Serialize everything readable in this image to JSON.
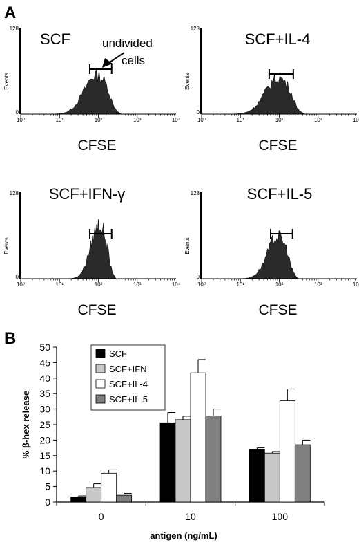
{
  "panel_a_label": "A",
  "panel_b_label": "B",
  "chart_data": [
    {
      "type": "area",
      "panel": "A",
      "title": "SCF",
      "xlabel": "CFSE",
      "ylabel": "Events",
      "x_scale": "log",
      "xlim": [
        1,
        10000
      ],
      "ylim": [
        0,
        128
      ],
      "x_ticks": [
        "10⁰",
        "10¹",
        "10²",
        "10³",
        "10⁴"
      ],
      "y_ticks": [
        "0",
        "128"
      ],
      "peak_x": 90,
      "width": 0.32,
      "peak_y": 60,
      "gate": [
        60,
        220
      ],
      "annotation": {
        "text_line1": "undivided",
        "text_line2": "cells"
      }
    },
    {
      "type": "area",
      "panel": "A",
      "title": "SCF+IL-4",
      "xlabel": "CFSE",
      "ylabel": "Events",
      "x_scale": "log",
      "xlim": [
        1,
        10000
      ],
      "ylim": [
        0,
        128
      ],
      "x_ticks": [
        "10⁰",
        "10¹",
        "10²",
        "10³",
        "10⁴"
      ],
      "y_ticks": [
        "0",
        "128"
      ],
      "peak_x": 95,
      "width": 0.34,
      "peak_y": 55,
      "gate": [
        55,
        230
      ]
    },
    {
      "type": "area",
      "panel": "A",
      "title": "SCF+IFN-γ",
      "xlabel": "CFSE",
      "ylabel": "Events",
      "x_scale": "log",
      "xlim": [
        1,
        10000
      ],
      "ylim": [
        0,
        128
      ],
      "x_ticks": [
        "10⁰",
        "10¹",
        "10²",
        "10³",
        "10⁴"
      ],
      "y_ticks": [
        "0",
        "128"
      ],
      "peak_x": 105,
      "width": 0.22,
      "peak_y": 82,
      "gate": [
        60,
        220
      ]
    },
    {
      "type": "area",
      "panel": "A",
      "title": "SCF+IL-5",
      "xlabel": "CFSE",
      "ylabel": "Events",
      "x_scale": "log",
      "xlim": [
        1,
        10000
      ],
      "ylim": [
        0,
        128
      ],
      "x_ticks": [
        "10⁰",
        "10¹",
        "10²",
        "10³",
        "10⁴"
      ],
      "y_ticks": [
        "0",
        "128"
      ],
      "peak_x": 92,
      "width": 0.27,
      "peak_y": 64,
      "gate": [
        60,
        220
      ]
    },
    {
      "type": "bar",
      "panel": "B",
      "xlabel": "antigen (ng/mL)",
      "ylabel": "% β-hex release",
      "ylim": [
        0,
        50
      ],
      "y_ticks": [
        0,
        5,
        10,
        15,
        20,
        25,
        30,
        35,
        40,
        45,
        50
      ],
      "categories": [
        "0",
        "10",
        "100"
      ],
      "legend_position": "top-left",
      "series": [
        {
          "name": "SCF",
          "color": "#000000",
          "values": [
            1.7,
            25.6,
            17.0
          ],
          "errors": [
            0.3,
            3.3,
            0.5
          ]
        },
        {
          "name": "SCF+IFN",
          "color": "#c8c8c8",
          "values": [
            4.7,
            26.6,
            15.8
          ],
          "errors": [
            1.2,
            1.1,
            0.5
          ]
        },
        {
          "name": "SCF+IL-4",
          "color": "#ffffff",
          "values": [
            9.3,
            41.7,
            32.7
          ],
          "errors": [
            1.1,
            4.3,
            3.8
          ]
        },
        {
          "name": "SCF+IL-5",
          "color": "#808080",
          "values": [
            2.2,
            27.8,
            18.5
          ],
          "errors": [
            0.6,
            2.2,
            1.5
          ]
        }
      ]
    }
  ]
}
